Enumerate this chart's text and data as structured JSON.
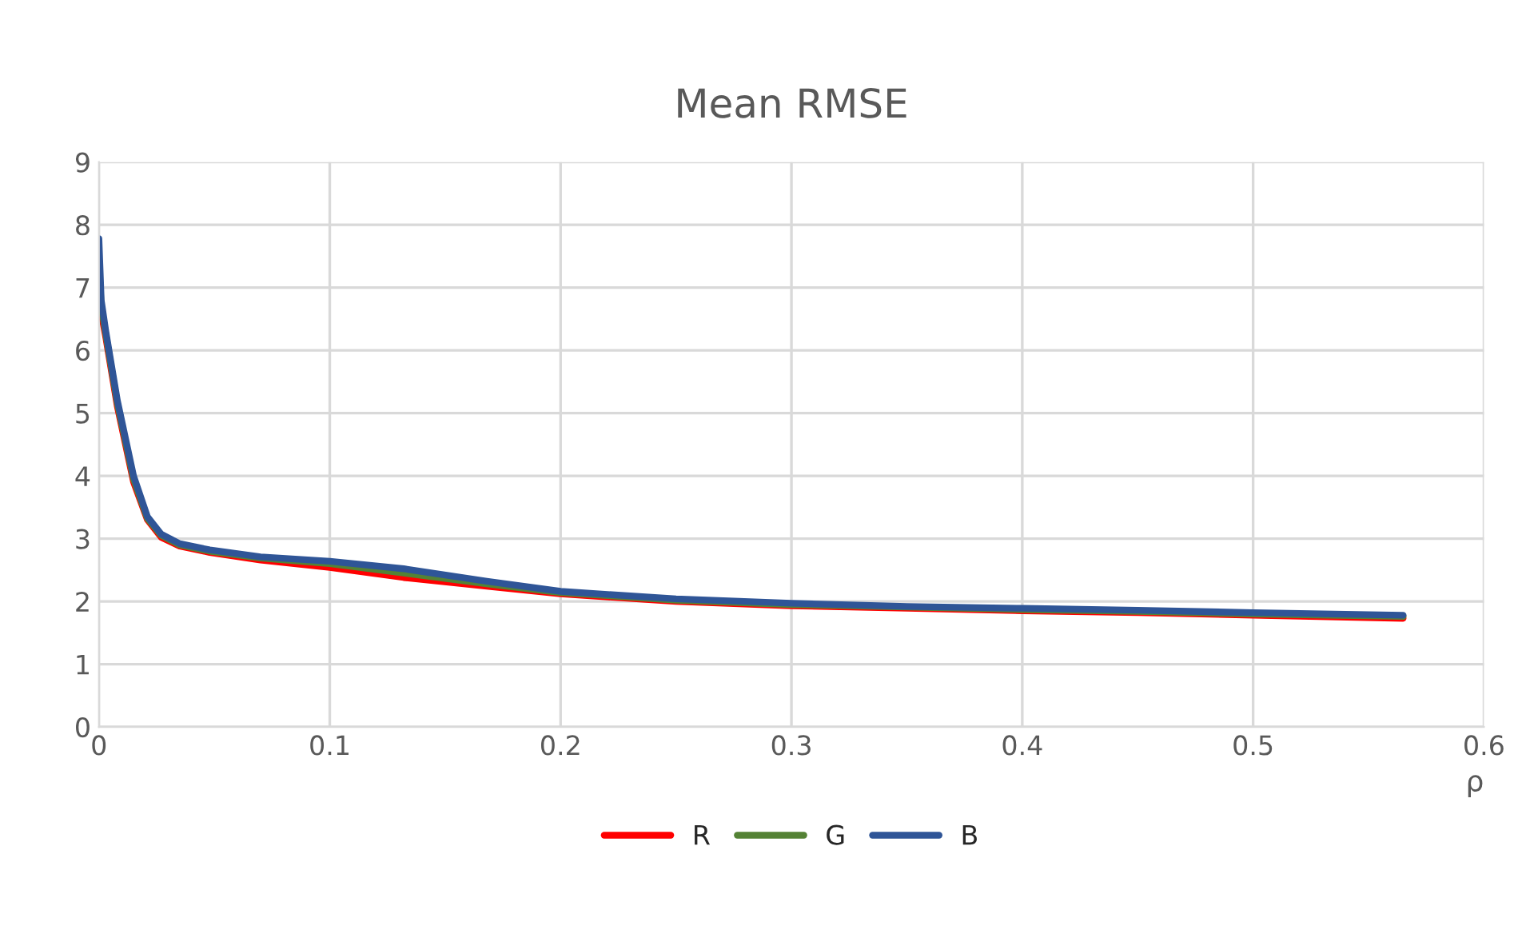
{
  "chart_data": {
    "type": "line",
    "title": "Mean RMSE",
    "xlabel": "ρ",
    "x": [
      0,
      0.001,
      0.003,
      0.008,
      0.015,
      0.021,
      0.027,
      0.035,
      0.048,
      0.07,
      0.1,
      0.132,
      0.168,
      0.2,
      0.25,
      0.3,
      0.35,
      0.4,
      0.45,
      0.5,
      0.565
    ],
    "series": [
      {
        "name": "R",
        "color": "#ff0000",
        "values": [
          null,
          6.6,
          6.2,
          5.1,
          3.9,
          3.3,
          3.02,
          2.88,
          2.78,
          2.66,
          2.54,
          2.38,
          2.24,
          2.12,
          2.0,
          1.93,
          1.89,
          1.85,
          1.82,
          1.78,
          1.73
        ]
      },
      {
        "name": "G",
        "color": "#548235",
        "values": [
          7.4,
          6.7,
          6.25,
          5.15,
          3.95,
          3.32,
          3.05,
          2.9,
          2.8,
          2.69,
          2.6,
          2.45,
          2.28,
          2.14,
          2.02,
          1.95,
          1.91,
          1.87,
          1.84,
          1.8,
          1.76
        ]
      },
      {
        "name": "B",
        "color": "#2f5597",
        "values": [
          7.78,
          6.8,
          6.3,
          5.2,
          4.0,
          3.35,
          3.07,
          2.92,
          2.82,
          2.71,
          2.64,
          2.52,
          2.32,
          2.16,
          2.04,
          1.97,
          1.92,
          1.89,
          1.86,
          1.82,
          1.78
        ]
      }
    ],
    "xlim": [
      0,
      0.6
    ],
    "xticks": [
      0,
      0.1,
      0.2,
      0.3,
      0.4,
      0.5,
      0.6
    ],
    "ylim": [
      0,
      9
    ],
    "yticks": [
      0,
      1,
      2,
      3,
      4,
      5,
      6,
      7,
      8,
      9
    ],
    "grid": true,
    "legend": "bottom",
    "marker": "none",
    "line_style": "solid"
  }
}
